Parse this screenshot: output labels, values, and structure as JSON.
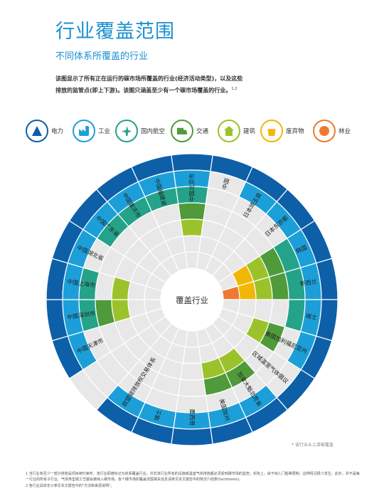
{
  "header": {
    "title": "行业覆盖范围",
    "subtitle": "不同体系所覆盖的行业"
  },
  "intro": {
    "line1": "该图显示了所有正在运行的碳市场所覆盖的行业(经济活动类型)，以及这些",
    "line2": "排放的监管点(即上下游)。该图只涵盖至少有一个碳市场覆盖的行业。",
    "superscript": "1,2"
  },
  "legend": [
    {
      "name": "电力",
      "color": "#0d5fa8",
      "icon": "power-tower-icon"
    },
    {
      "name": "工业",
      "color": "#1c9fd9",
      "icon": "factory-icon"
    },
    {
      "name": "国内航空",
      "color": "#24a38a",
      "icon": "airplane-icon"
    },
    {
      "name": "交通",
      "color": "#4f9a3a",
      "icon": "truck-icon"
    },
    {
      "name": "建筑",
      "color": "#9cc22b",
      "icon": "house-icon"
    },
    {
      "name": "废弃物",
      "color": "#f2b705",
      "icon": "waste-icon"
    },
    {
      "name": "林业",
      "color": "#ee7a31",
      "icon": "tree-icon"
    }
  ],
  "chart_data": {
    "type": "radial-matrix",
    "center_label": "覆盖行业",
    "rings": [
      "电力",
      "工业",
      "国内航空",
      "交通",
      "建筑",
      "废弃物",
      "林业"
    ],
    "systems": [
      {
        "name": "中国北京市",
        "coverage": {
          "电力": "full",
          "工业": "full",
          "国内航空": "full",
          "交通": "full",
          "建筑": "full",
          "废弃物": "none",
          "林业": "none"
        }
      },
      {
        "name": "中国",
        "coverage": {
          "电力": "full",
          "工业": "none",
          "国内航空": "none",
          "交通": "none",
          "建筑": "none",
          "废弃物": "none",
          "林业": "none"
        }
      },
      {
        "name": "日本琦玉县",
        "coverage": {
          "电力": "full",
          "工业": "full",
          "国内航空": "none",
          "交通": "none",
          "建筑": "none",
          "废弃物": "none",
          "林业": "none"
        }
      },
      {
        "name": "日本东京都",
        "coverage": {
          "电力": "full",
          "工业": "full",
          "国内航空": "none",
          "交通": "none",
          "建筑": "none",
          "废弃物": "none",
          "林业": "none"
        }
      },
      {
        "name": "韩国",
        "coverage": {
          "电力": "full",
          "工业": "full",
          "国内航空": "full",
          "交通": "full",
          "建筑": "full",
          "废弃物": "full",
          "林业": "none"
        }
      },
      {
        "name": "新西兰",
        "coverage": {
          "电力": "full",
          "工业": "full",
          "国内航空": "full",
          "交通": "full",
          "建筑": "full",
          "废弃物": "full",
          "林业": "full"
        }
      },
      {
        "name": "瑞士",
        "coverage": {
          "电力": "full",
          "工业": "full",
          "国内航空": "full",
          "交通": "none",
          "建筑": "none",
          "废弃物": "none",
          "林业": "none"
        }
      },
      {
        "name": "美国加利福尼亚州",
        "coverage": {
          "电力": "full",
          "工业": "full",
          "国内航空": "none",
          "交通": "full",
          "建筑": "full",
          "废弃物": "none",
          "林业": "none"
        }
      },
      {
        "name": "区域温室气体倡议",
        "coverage": {
          "电力": "full",
          "工业": "none",
          "国内航空": "none",
          "交通": "none",
          "建筑": "none",
          "废弃物": "none",
          "林业": "none"
        }
      },
      {
        "name": "加拿大魁北克省",
        "coverage": {
          "电力": "full",
          "工业": "full",
          "国内航空": "none",
          "交通": "full",
          "建筑": "full",
          "废弃物": "none",
          "林业": "none"
        }
      },
      {
        "name": "美国加州",
        "coverage": {
          "电力": "full",
          "工业": "full",
          "国内航空": "none",
          "交通": "full",
          "建筑": "full",
          "废弃物": "none",
          "林业": "none"
        }
      },
      {
        "name": "墨西哥",
        "coverage": {
          "电力": "full",
          "工业": "full",
          "国内航空": "none",
          "交通": "none",
          "建筑": "none",
          "废弃物": "none",
          "林业": "none"
        }
      },
      {
        "name": "瑞士",
        "coverage": {
          "电力": "full",
          "工业": "full",
          "国内航空": "none",
          "交通": "none",
          "建筑": "none",
          "废弃物": "none",
          "林业": "none"
        }
      },
      {
        "name": "欧盟碳排放权交易体系",
        "coverage": {
          "电力": "full",
          "工业": "full",
          "国内航空": "none",
          "交通": "none",
          "建筑": "none",
          "废弃物": "none",
          "林业": "none"
        }
      },
      {
        "name": "",
        "coverage": {
          "电力": "none",
          "工业": "none",
          "国内航空": "none",
          "交通": "none",
          "建筑": "none",
          "废弃物": "none",
          "林业": "none"
        }
      },
      {
        "name": "中国天津市",
        "coverage": {
          "电力": "full",
          "工业": "full",
          "国内航空": "none",
          "交通": "none",
          "建筑": "none",
          "废弃物": "none",
          "林业": "none"
        }
      },
      {
        "name": "中国深圳市",
        "coverage": {
          "电力": "full",
          "工业": "full",
          "国内航空": "full",
          "交通": "full",
          "建筑": "full",
          "废弃物": "none",
          "林业": "none"
        }
      },
      {
        "name": "中国上海市",
        "coverage": {
          "电力": "full",
          "工业": "full",
          "国内航空": "full",
          "交通": "none",
          "建筑": "full",
          "废弃物": "none",
          "林业": "none"
        }
      },
      {
        "name": "中国湖北省",
        "coverage": {
          "电力": "full",
          "工业": "full",
          "国内航空": "none",
          "交通": "none",
          "建筑": "none",
          "废弃物": "none",
          "林业": "none"
        }
      },
      {
        "name": "中国广东省",
        "coverage": {
          "电力": "full",
          "工业": "full",
          "国内航空": "full",
          "交通": "none",
          "建筑": "none",
          "废弃物": "none",
          "林业": "none"
        }
      },
      {
        "name": "中国重庆市",
        "coverage": {
          "电力": "full",
          "工业": "full",
          "国内航空": "full",
          "交通": "none",
          "建筑": "none",
          "废弃物": "none",
          "林业": "none"
        }
      },
      {
        "name": "中国福建省",
        "coverage": {
          "电力": "full",
          "工业": "full",
          "国内航空": "full",
          "交通": "none",
          "建筑": "none",
          "废弃物": "none",
          "林业": "none"
        }
      }
    ]
  },
  "footnote_legend": "* 该行业从上游被覆盖",
  "footnotes": [
    "1 当行业有至少一部分排放是项目被约束时，该行业即被标记为体系覆盖行业。并非该行业所有的设施或温室气体排放都必须受到碳市场的监管；实际上，由于纳入门槛等限制，这种情况很少发生。此外，并不是每一行业的所有子行业、气体类型或工艺都会被纳入碳市场。各个碳市场的覆盖范围相关信息请参见本文报告中的简况介绍表(factsheets)。",
    "2 各行业具体定义参见本文报告中的\"方法和来源说明\"。"
  ]
}
